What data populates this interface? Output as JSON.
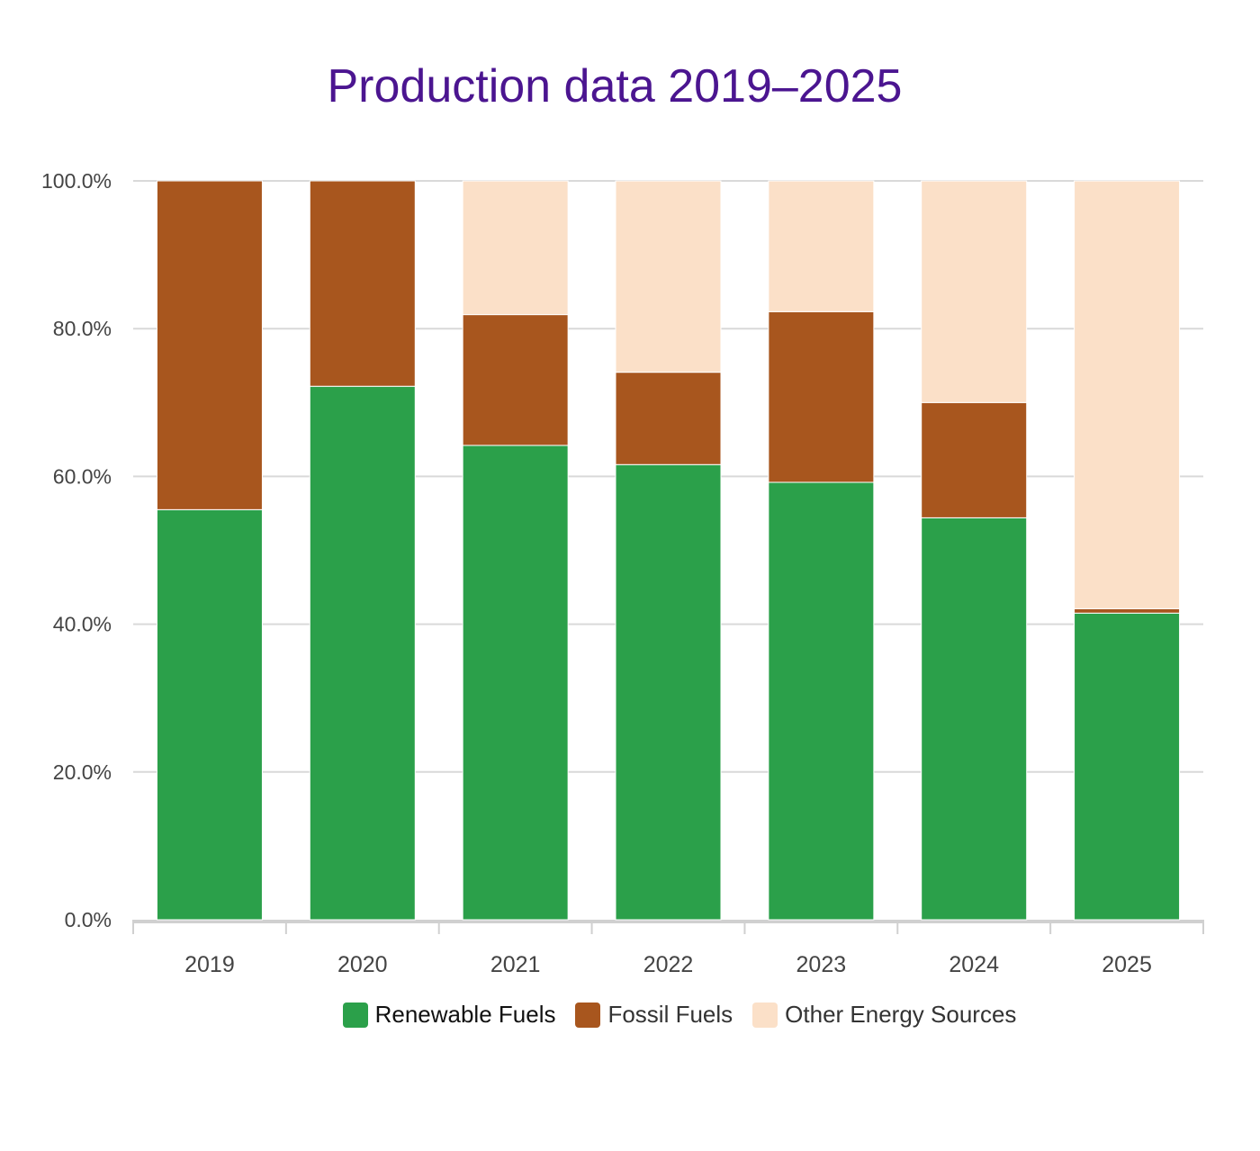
{
  "chart_data": {
    "type": "bar",
    "stacked": true,
    "title": "Production data 2019–2025",
    "xlabel": "",
    "ylabel": "",
    "ylim": [
      0,
      100
    ],
    "yticks": [
      "0.0%",
      "20.0%",
      "40.0%",
      "60.0%",
      "80.0%",
      "100.0%"
    ],
    "grid": true,
    "legend_position": "bottom",
    "categories": [
      "2019",
      "2020",
      "2021",
      "2022",
      "2023",
      "2024",
      "2025"
    ],
    "series": [
      {
        "name": "Renewable Fuels",
        "color": "#2ba04a",
        "values": [
          55.5,
          72.2,
          64.2,
          61.6,
          59.2,
          54.4,
          41.5
        ]
      },
      {
        "name": "Fossil Fuels",
        "color": "#a8561e",
        "values": [
          44.5,
          27.8,
          17.7,
          12.5,
          23.1,
          15.6,
          0.6
        ]
      },
      {
        "name": "Other Energy Sources",
        "color": "#fbe0c8",
        "values": [
          0.0,
          0.0,
          18.1,
          25.9,
          17.7,
          30.0,
          57.9
        ]
      }
    ]
  }
}
